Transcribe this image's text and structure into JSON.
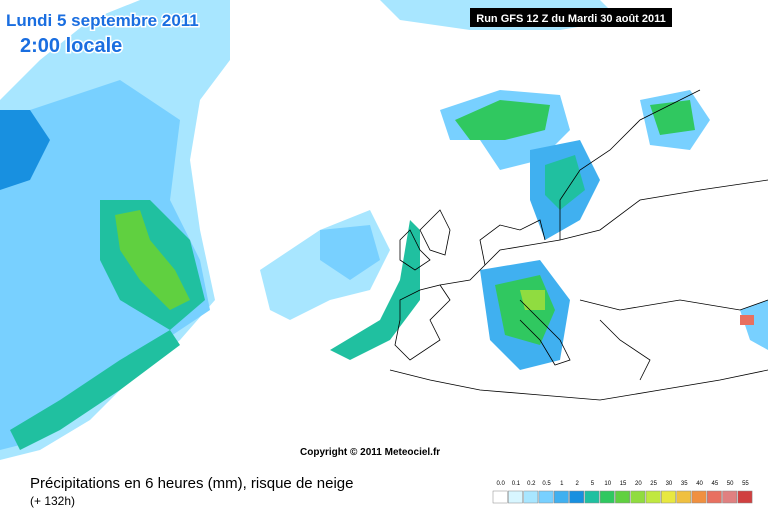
{
  "header": {
    "date": "Lundi 5 septembre 2011",
    "time": "2:00 locale",
    "run": "Run GFS 12 Z du Mardi 30 août 2011"
  },
  "copyright": "Copyright © 2011 Meteociel.fr",
  "caption": {
    "title": "Précipitations en 6 heures (mm), risque de neige",
    "subtitle": "(+ 132h)"
  },
  "legend": [
    {
      "label": "0.0",
      "color": "#ffffff"
    },
    {
      "label": "0.1",
      "color": "#d8f6ff"
    },
    {
      "label": "0.2",
      "color": "#a8e6ff"
    },
    {
      "label": "0.5",
      "color": "#78d0ff"
    },
    {
      "label": "1",
      "color": "#40b0f0"
    },
    {
      "label": "2",
      "color": "#1890e0"
    },
    {
      "label": "5",
      "color": "#20c0a0"
    },
    {
      "label": "10",
      "color": "#30c860"
    },
    {
      "label": "15",
      "color": "#60d040"
    },
    {
      "label": "20",
      "color": "#90dc40"
    },
    {
      "label": "25",
      "color": "#c0e840"
    },
    {
      "label": "30",
      "color": "#e8e840"
    },
    {
      "label": "35",
      "color": "#f0c040"
    },
    {
      "label": "40",
      "color": "#f09040"
    },
    {
      "label": "45",
      "color": "#e87060"
    },
    {
      "label": "50",
      "color": "#e08080"
    },
    {
      "label": "55",
      "color": "#d04040"
    }
  ]
}
